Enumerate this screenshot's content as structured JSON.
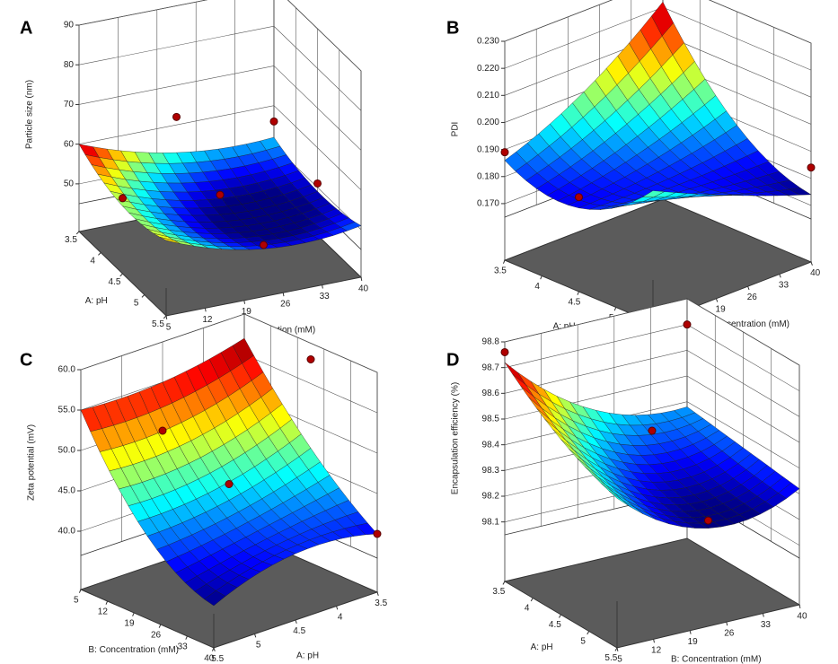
{
  "chart_data": [
    {
      "type": "surface3d",
      "label": "A",
      "zlabel": "Particle size (nm)",
      "xlabel": "A: pH",
      "ylabel": "B: Concentration (mM)",
      "x": [
        3.5,
        4.5,
        5.5
      ],
      "y": [
        5,
        22.5,
        40
      ],
      "z": [
        [
          60,
          53,
          52
        ],
        [
          55,
          48,
          49
        ],
        [
          57,
          50,
          51
        ]
      ],
      "xlim": [
        3.5,
        5.5
      ],
      "xticks": [
        3.5,
        4,
        4.5,
        5,
        5.5
      ],
      "ylim": [
        5,
        40
      ],
      "yticks": [
        5,
        12,
        19,
        26,
        33,
        40
      ],
      "zlim": [
        45,
        90
      ],
      "zticks": [
        50,
        60,
        70,
        80,
        90
      ],
      "points": [
        {
          "a": 3.5,
          "b": 22.5,
          "z": 62
        },
        {
          "a": 4.5,
          "b": 5,
          "z": 57
        },
        {
          "a": 4.5,
          "b": 22.5,
          "z": 53
        },
        {
          "a": 5.5,
          "b": 22.5,
          "z": 51
        },
        {
          "a": 3.5,
          "b": 40,
          "z": 56
        },
        {
          "a": 4.5,
          "b": 40,
          "z": 51
        }
      ]
    },
    {
      "type": "surface3d",
      "label": "B",
      "zlabel": "PDI",
      "xlabel": "A: pH",
      "ylabel": "B: Concentration (mM)",
      "x": [
        3.5,
        4.5,
        5.5
      ],
      "y": [
        5,
        22.5,
        40
      ],
      "z": [
        [
          0.186,
          0.2,
          0.222
        ],
        [
          0.18,
          0.182,
          0.188
        ],
        [
          0.198,
          0.185,
          0.174
        ]
      ],
      "xlim": [
        3.5,
        5.5
      ],
      "xticks": [
        3.5,
        4,
        4.5,
        5,
        5.5
      ],
      "ylim": [
        5,
        40
      ],
      "yticks": [
        5,
        12,
        19,
        26,
        33,
        40
      ],
      "zlim": [
        0.165,
        0.23
      ],
      "zticks": [
        {
          "value": 0.17,
          "label": "0.170"
        },
        {
          "value": 0.18,
          "label": "0.180"
        },
        {
          "value": 0.19,
          "label": "0.190"
        },
        {
          "value": 0.2,
          "label": "0.200"
        },
        {
          "value": 0.21,
          "label": "0.210"
        },
        {
          "value": 0.22,
          "label": "0.220"
        },
        {
          "value": 0.23,
          "label": "0.230"
        }
      ],
      "points": [
        {
          "a": 3.5,
          "b": 40,
          "z": 0.229
        },
        {
          "a": 4.5,
          "b": 5,
          "z": 0.184
        },
        {
          "a": 5.5,
          "b": 40,
          "z": 0.184
        },
        {
          "a": 3.5,
          "b": 5,
          "z": 0.189
        }
      ]
    },
    {
      "type": "surface3d",
      "label": "C",
      "zlabel": "Zeta potential (mV)",
      "xlabel": "A: pH",
      "ylabel": "B: Concentration (mM)",
      "x": [
        3.5,
        4.5,
        5.5
      ],
      "y": [
        5,
        22.5,
        40
      ],
      "z": [
        [
          57,
          47,
          40
        ],
        [
          55,
          44,
          41
        ],
        [
          55,
          43,
          38
        ]
      ],
      "xlim": [
        3.5,
        5.5
      ],
      "xticks": [
        3.5,
        4,
        4.5,
        5,
        5.5
      ],
      "ylim": [
        5,
        40
      ],
      "yticks": [
        5,
        12,
        19,
        26,
        33,
        40
      ],
      "zlim": [
        37,
        60
      ],
      "zticks": [
        {
          "value": 40,
          "label": "40.0"
        },
        {
          "value": 45,
          "label": "45.0"
        },
        {
          "value": 50,
          "label": "50.0"
        },
        {
          "value": 55,
          "label": "55.0"
        },
        {
          "value": 60,
          "label": "60.0"
        }
      ],
      "points": [
        {
          "a": 3.5,
          "b": 22.5,
          "z": 58
        },
        {
          "a": 4.5,
          "b": 5,
          "z": 49
        },
        {
          "a": 4.5,
          "b": 22.5,
          "z": 46
        },
        {
          "a": 3.5,
          "b": 40,
          "z": 40
        }
      ]
    },
    {
      "type": "surface3d",
      "label": "D",
      "zlabel": "Encapsulation efficiency (%)",
      "xlabel": "A: pH",
      "ylabel": "B: Concentration (mM)",
      "x": [
        3.5,
        4.5,
        5.5
      ],
      "y": [
        5,
        22.5,
        40
      ],
      "z": [
        [
          98.72,
          98.45,
          98.38
        ],
        [
          98.55,
          98.3,
          98.35
        ],
        [
          98.45,
          98.25,
          98.32
        ]
      ],
      "xlim": [
        3.5,
        5.5
      ],
      "xticks": [
        3.5,
        4,
        4.5,
        5,
        5.5
      ],
      "ylim": [
        5,
        40
      ],
      "yticks": [
        5,
        12,
        19,
        26,
        33,
        40
      ],
      "zlim": [
        98.05,
        98.8
      ],
      "zticks": [
        98.1,
        98.2,
        98.3,
        98.4,
        98.5,
        98.6,
        98.7,
        98.8
      ],
      "points": [
        {
          "a": 3.5,
          "b": 5,
          "z": 98.76
        },
        {
          "a": 3.5,
          "b": 40,
          "z": 98.7
        },
        {
          "a": 4.5,
          "b": 22.5,
          "z": 98.5
        },
        {
          "a": 5.5,
          "b": 22.5,
          "z": 98.28
        }
      ]
    }
  ]
}
